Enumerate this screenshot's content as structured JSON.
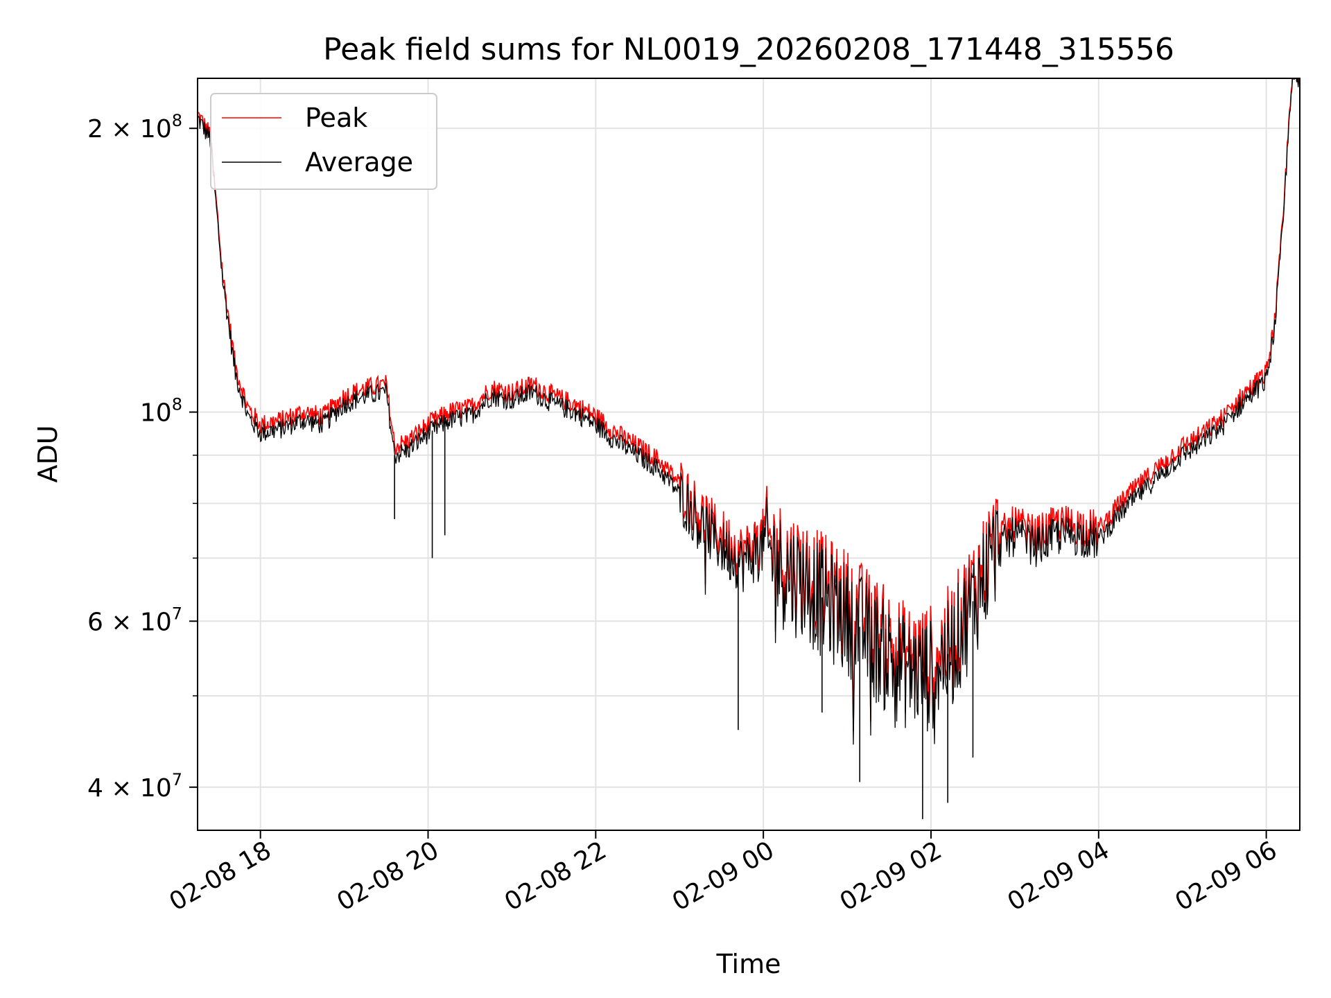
{
  "chart_data": {
    "type": "line",
    "title": "Peak field sums for NL0019_20260208_171448_315556",
    "xlabel": "Time",
    "ylabel": "ADU",
    "yscale": "log",
    "ylim": [
      36000000,
      226000000
    ],
    "xlim_hours": [
      17.25,
      6.4
    ],
    "grid": true,
    "legend_position": "top-left",
    "x_ticks": [
      {
        "hour": 18,
        "label": "02-08 18"
      },
      {
        "hour": 20,
        "label": "02-08 20"
      },
      {
        "hour": 22,
        "label": "02-08 22"
      },
      {
        "hour": 24,
        "label": "02-09 00"
      },
      {
        "hour": 26,
        "label": "02-09 02"
      },
      {
        "hour": 28,
        "label": "02-09 04"
      },
      {
        "hour": 30,
        "label": "02-09 06"
      }
    ],
    "y_major_ticks": [
      {
        "value": 40000000,
        "mantissa": "4 × 10",
        "exponent": "7"
      },
      {
        "value": 60000000,
        "mantissa": "6 × 10",
        "exponent": "7"
      },
      {
        "value": 100000000,
        "mantissa": "10",
        "exponent": "8"
      },
      {
        "value": 200000000,
        "mantissa": "2 × 10",
        "exponent": "8"
      }
    ],
    "y_minor_ticks": [
      50000000,
      70000000,
      80000000,
      90000000
    ],
    "series": [
      {
        "name": "Peak",
        "color": "#ff0000",
        "x_hours": [
          17.25,
          17.4,
          17.55,
          17.7,
          17.85,
          18.0,
          18.25,
          18.5,
          18.75,
          19.0,
          19.25,
          19.5,
          19.6,
          19.75,
          20.0,
          20.25,
          20.5,
          20.75,
          21.0,
          21.25,
          21.5,
          21.75,
          22.0,
          22.25,
          22.5,
          22.75,
          23.0,
          23.25,
          23.5,
          23.75,
          24.0,
          24.25,
          24.5,
          24.75,
          25.0,
          25.25,
          25.5,
          25.75,
          26.0,
          26.25,
          26.5,
          26.75,
          27.0,
          27.25,
          27.5,
          27.75,
          28.0,
          28.25,
          28.5,
          28.75,
          29.0,
          29.25,
          29.5,
          29.75,
          30.0,
          30.1,
          30.2,
          30.3
        ],
        "values": [
          207000000,
          197000000,
          140000000,
          112000000,
          101000000,
          97000000,
          98000000,
          100000000,
          99000000,
          104000000,
          106000000,
          107000000,
          92000000,
          93000000,
          97000000,
          100000000,
          101000000,
          106000000,
          105000000,
          107000000,
          104000000,
          102000000,
          99000000,
          95000000,
          92000000,
          89000000,
          84000000,
          78000000,
          74000000,
          71000000,
          74000000,
          70000000,
          68000000,
          65000000,
          63000000,
          60000000,
          57000000,
          55000000,
          55000000,
          58000000,
          65000000,
          73000000,
          76000000,
          74000000,
          76000000,
          76000000,
          75000000,
          80000000,
          84000000,
          88000000,
          92000000,
          95000000,
          99000000,
          105000000,
          110000000,
          125000000,
          160000000,
          226000000
        ]
      },
      {
        "name": "Average",
        "color": "#000000",
        "x_hours": [
          17.25,
          17.4,
          17.55,
          17.7,
          17.85,
          18.0,
          18.25,
          18.5,
          18.75,
          19.0,
          19.25,
          19.5,
          19.6,
          19.75,
          20.0,
          20.25,
          20.5,
          20.75,
          21.0,
          21.25,
          21.5,
          21.75,
          22.0,
          22.25,
          22.5,
          22.75,
          23.0,
          23.25,
          23.5,
          23.75,
          24.0,
          24.25,
          24.5,
          24.75,
          25.0,
          25.25,
          25.5,
          25.75,
          26.0,
          26.25,
          26.5,
          26.75,
          27.0,
          27.25,
          27.5,
          27.75,
          28.0,
          28.25,
          28.5,
          28.75,
          29.0,
          29.25,
          29.5,
          29.75,
          30.0,
          30.1,
          30.2,
          30.3
        ],
        "values": [
          205000000,
          195000000,
          138000000,
          110000000,
          99000000,
          95000000,
          96000000,
          98000000,
          97000000,
          102000000,
          104000000,
          105000000,
          90000000,
          91000000,
          95000000,
          98000000,
          99000000,
          104000000,
          103000000,
          105000000,
          102000000,
          100000000,
          97000000,
          93000000,
          90000000,
          87000000,
          82000000,
          76000000,
          72000000,
          69000000,
          72000000,
          68000000,
          66000000,
          63000000,
          61000000,
          58000000,
          55000000,
          53000000,
          53000000,
          56000000,
          63000000,
          71000000,
          74000000,
          72000000,
          74000000,
          74000000,
          73000000,
          78000000,
          82000000,
          86000000,
          90000000,
          93000000,
          97000000,
          103000000,
          108000000,
          123000000,
          158000000,
          224000000
        ]
      }
    ],
    "dips": [
      {
        "series": "Average",
        "hour": 19.6,
        "value": 77000000
      },
      {
        "series": "Average",
        "hour": 20.05,
        "value": 70000000
      },
      {
        "series": "Average",
        "hour": 20.2,
        "value": 74000000
      },
      {
        "series": "Average",
        "hour": 23.7,
        "value": 46000000
      },
      {
        "series": "Average",
        "hour": 24.7,
        "value": 48000000
      },
      {
        "series": "Average",
        "hour": 25.15,
        "value": 40500000
      },
      {
        "series": "Average",
        "hour": 25.9,
        "value": 37000000
      },
      {
        "series": "Average",
        "hour": 26.2,
        "value": 38500000
      },
      {
        "series": "Average",
        "hour": 26.5,
        "value": 43000000
      }
    ]
  }
}
